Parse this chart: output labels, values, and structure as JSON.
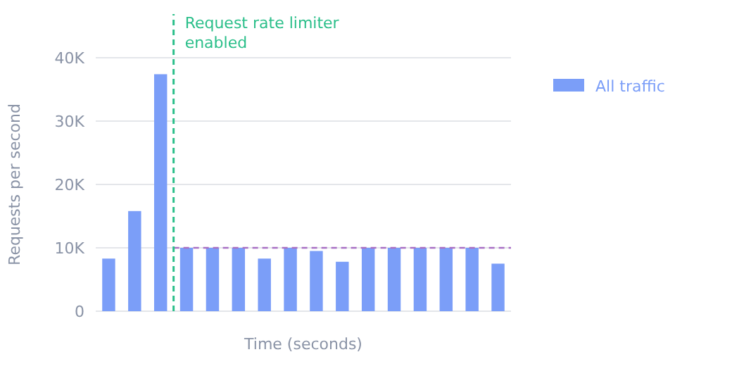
{
  "chart_data": {
    "type": "bar",
    "xlabel": "Time (seconds)",
    "ylabel": "Requests per second",
    "categories": [
      null,
      null,
      null,
      null,
      null,
      null,
      null,
      null,
      null,
      null,
      null,
      null,
      null,
      null,
      null,
      null
    ],
    "series": [
      {
        "name": "All traffic",
        "color": "#7b9ef8",
        "values": [
          8300,
          15800,
          37400,
          10000,
          10000,
          10000,
          8300,
          10000,
          9500,
          7800,
          10000,
          10000,
          10000,
          10000,
          10000,
          7500
        ]
      }
    ],
    "ylim": [
      0,
      40000
    ],
    "yticks": [
      0,
      {
        "value": 10000,
        "label": "10K"
      },
      {
        "value": 20000,
        "label": "20K"
      },
      {
        "value": 30000,
        "label": "30K"
      },
      {
        "value": 40000,
        "label": "40K"
      }
    ],
    "tick_labels": "y",
    "grid": "y",
    "legend": "top right",
    "annotations": [
      "Request rate limiter enabled"
    ],
    "ref_lines": [
      {
        "axis": "y",
        "value": 10000,
        "color": "#a86fc4",
        "line_style": "dashed"
      }
    ]
  }
}
